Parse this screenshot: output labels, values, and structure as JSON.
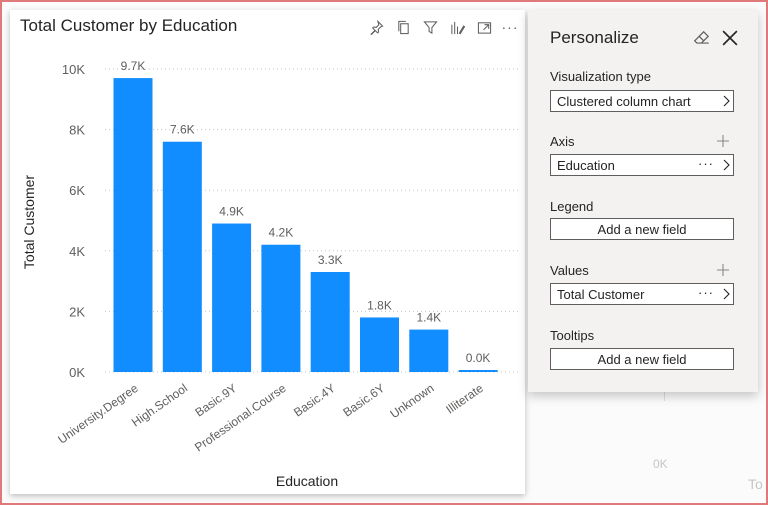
{
  "visual": {
    "title": "Total Customer by Education",
    "header_icons": [
      "pin-icon",
      "copy-icon",
      "filter-icon",
      "personalize-icon",
      "focus-mode-icon",
      "more-options-icon"
    ],
    "more_label": "···"
  },
  "chart_data": {
    "type": "bar",
    "title": "Total Customer by Education",
    "xlabel": "Education",
    "ylabel": "Total Customer",
    "categories": [
      "University.Degree",
      "High.School",
      "Basic.9Y",
      "Professional.Course",
      "Basic.4Y",
      "Basic.6Y",
      "Unknown",
      "Illiterate"
    ],
    "values": [
      9700,
      7600,
      4900,
      4200,
      3300,
      1800,
      1400,
      18
    ],
    "data_labels": [
      "9.7K",
      "7.6K",
      "4.9K",
      "4.2K",
      "3.3K",
      "1.8K",
      "1.4K",
      "0.0K"
    ],
    "y_ticks": [
      0,
      2000,
      4000,
      6000,
      8000,
      10000
    ],
    "y_tick_labels": [
      "0K",
      "2K",
      "4K",
      "6K",
      "8K",
      "10K"
    ],
    "ylim": [
      0,
      10000
    ],
    "grid": true,
    "bar_color": "#118dff"
  },
  "pane": {
    "title": "Personalize",
    "sections": {
      "viz_type": {
        "label": "Visualization type",
        "value": "Clustered column chart"
      },
      "axis": {
        "label": "Axis",
        "value": "Education",
        "more": "···"
      },
      "legend": {
        "label": "Legend",
        "placeholder": "Add a new field"
      },
      "values": {
        "label": "Values",
        "value": "Total Customer",
        "more": "···"
      },
      "tooltips": {
        "label": "Tooltips",
        "placeholder": "Add a new field"
      }
    }
  },
  "background": {
    "ghost_tick": "0K",
    "ghost_text": "To"
  },
  "colors": {
    "accent": "#118dff",
    "frame_border": "#e07a7a",
    "pane_bg": "#f3f2f1"
  }
}
